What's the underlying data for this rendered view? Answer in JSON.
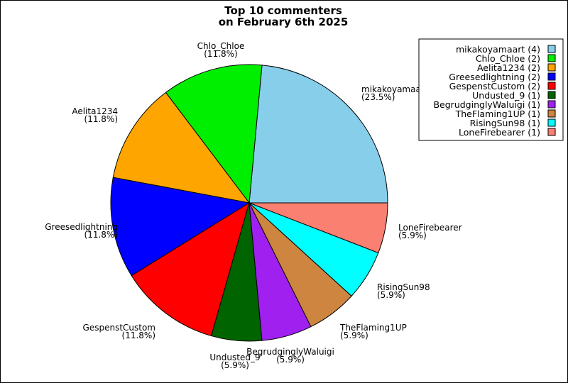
{
  "chart_data": {
    "type": "pie",
    "title_lines": [
      "Top 10 commenters",
      "on February 6th 2025"
    ],
    "slices": [
      {
        "name": "mikakoyamaart",
        "value": 4,
        "percent": "(23.5%)",
        "legend": "mikakoyamaart (4)",
        "color": "#87CEEB"
      },
      {
        "name": "Chlo_Chloe",
        "value": 2,
        "percent": "(11.8%)",
        "legend": "Chlo_Chloe (2)",
        "color": "#00EE00"
      },
      {
        "name": "Aelita1234",
        "value": 2,
        "percent": "(11.8%)",
        "legend": "Aelita1234 (2)",
        "color": "#FFA500"
      },
      {
        "name": "Greesedlightning",
        "value": 2,
        "percent": "(11.8%)",
        "legend": "Greesedlightning (2)",
        "color": "#0000FF"
      },
      {
        "name": "GespenstCustom",
        "value": 2,
        "percent": "(11.8%)",
        "legend": "GespenstCustom (2)",
        "color": "#FF0000"
      },
      {
        "name": "Undusted_9",
        "value": 1,
        "percent": "(5.9%)",
        "legend": "Undusted_9 (1)",
        "color": "#006400"
      },
      {
        "name": "BegrudginglyWaluigi",
        "value": 1,
        "percent": "(5.9%)",
        "legend": "BegrudginglyWaluigi (1)",
        "color": "#A020F0"
      },
      {
        "name": "TheFlaming1UP",
        "value": 1,
        "percent": "(5.9%)",
        "legend": "TheFlaming1UP (1)",
        "color": "#CD853F"
      },
      {
        "name": "RisingSun98",
        "value": 1,
        "percent": "(5.9%)",
        "legend": "RisingSun98 (1)",
        "color": "#00FFFF"
      },
      {
        "name": "LoneFirebearer",
        "value": 1,
        "percent": "(5.9%)",
        "legend": "LoneFirebearer (1)",
        "color": "#FA8072"
      }
    ],
    "legend_position": "top-right"
  }
}
